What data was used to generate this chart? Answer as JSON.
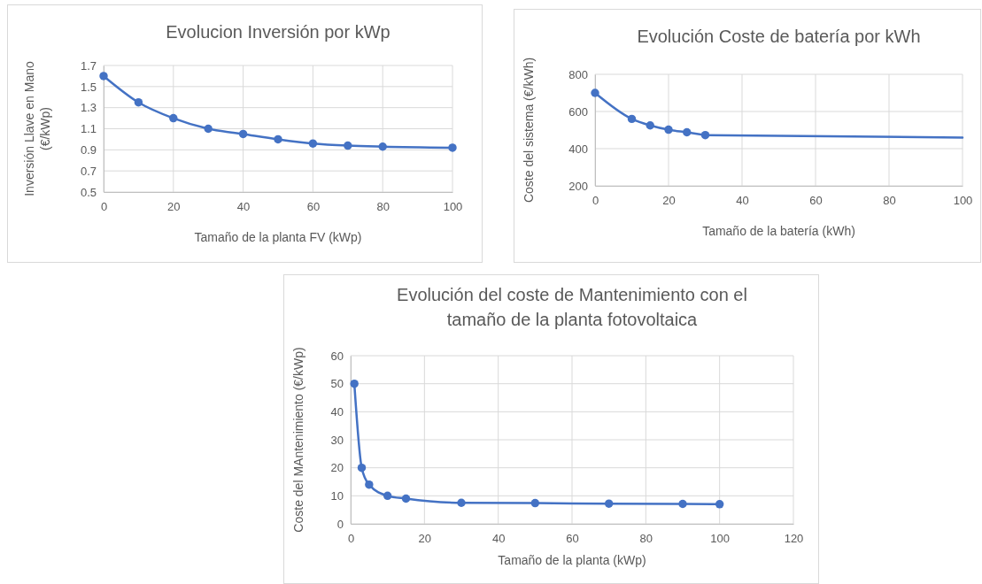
{
  "chart_data": [
    {
      "type": "line",
      "title": "Evolucion Inversión por kWp",
      "xlabel": "Tamaño de la planta FV (kWp)",
      "ylabel": "Inversión Llave en Mano (€/kWp)",
      "x": [
        0,
        10,
        20,
        30,
        40,
        50,
        60,
        70,
        80,
        100
      ],
      "series": [
        {
          "color": "#4472c4",
          "values": [
            1.6,
            1.35,
            1.2,
            1.1,
            1.05,
            1.0,
            0.96,
            0.94,
            0.93,
            0.92
          ]
        }
      ],
      "xlim": [
        0,
        100
      ],
      "xticks": [
        0,
        20,
        40,
        60,
        80,
        100
      ],
      "ylim": [
        0.5,
        1.7
      ],
      "yticks": [
        {
          "value": 0.5,
          "label": "0.5"
        },
        {
          "value": 0.7,
          "label": "0.7"
        },
        {
          "value": 0.9,
          "label": "0.9"
        },
        {
          "value": 1.1,
          "label": "1.1"
        },
        {
          "value": 1.3,
          "label": "1.3"
        },
        {
          "value": 1.5,
          "label": "1.5"
        },
        {
          "value": 1.7,
          "label": "1.7"
        }
      ],
      "grid": true,
      "marker": "circle"
    },
    {
      "type": "line",
      "title": "Evolución Coste de batería por kWh",
      "xlabel": "Tamaño de la batería (kWh)",
      "ylabel": "Coste del sistema (€/kWh)",
      "series": [
        {
          "color": "#4472c4",
          "x": [
            0,
            10,
            15,
            20,
            25,
            30
          ],
          "values": [
            700,
            560,
            525,
            502,
            488,
            473
          ],
          "marker": "circle"
        },
        {
          "color": "#4472c4",
          "x": [
            30,
            100
          ],
          "values": [
            473,
            460
          ],
          "marker": "none"
        }
      ],
      "xlim": [
        0,
        100
      ],
      "xticks": [
        0,
        20,
        40,
        60,
        80,
        100
      ],
      "ylim": [
        200,
        800
      ],
      "yticks": [
        200,
        400,
        600,
        800
      ],
      "grid": true
    },
    {
      "type": "line",
      "title": "Evolución del coste de Mantenimiento con el tamaño de la planta fotovoltaica",
      "xlabel": "Tamaño de la planta (kWp)",
      "ylabel": "Coste del MAntenimiento (€/kWp)",
      "x": [
        1,
        3,
        5,
        10,
        15,
        30,
        50,
        70,
        90,
        100
      ],
      "series": [
        {
          "color": "#4472c4",
          "values": [
            50,
            20,
            14,
            10,
            9,
            7.5,
            7.4,
            7.2,
            7.1,
            7.0
          ]
        }
      ],
      "xlim": [
        0,
        120
      ],
      "xticks": [
        0,
        20,
        40,
        60,
        80,
        100,
        120
      ],
      "ylim": [
        0,
        60
      ],
      "yticks": [
        0,
        10,
        20,
        30,
        40,
        50,
        60
      ],
      "grid": true,
      "marker": "circle"
    }
  ]
}
